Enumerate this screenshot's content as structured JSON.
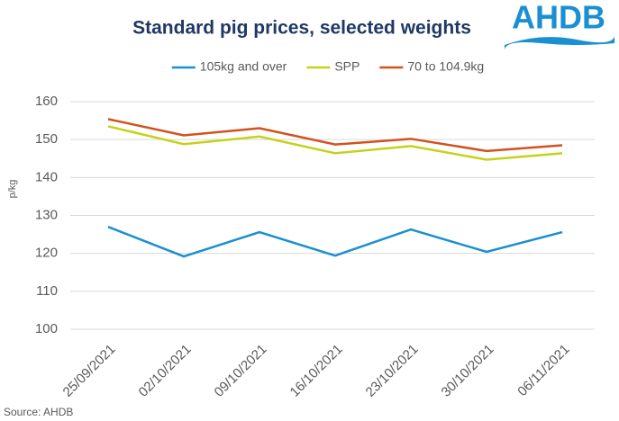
{
  "chart_data": {
    "type": "line",
    "title": "Standard pig prices, selected weights",
    "y_label": "p/kg",
    "categories": [
      "25/09/2021",
      "02/10/2021",
      "09/10/2021",
      "16/10/2021",
      "23/10/2021",
      "30/10/2021",
      "06/11/2021"
    ],
    "series": [
      {
        "name": "105kg and over",
        "color": "#1a8fd1",
        "values": [
          127.0,
          119.2,
          125.6,
          119.4,
          126.3,
          120.4,
          125.6
        ]
      },
      {
        "name": "SPP",
        "color": "#c5d21a",
        "values": [
          153.5,
          148.8,
          150.8,
          146.4,
          148.3,
          144.7,
          146.4
        ]
      },
      {
        "name": "70 to 104.9kg",
        "color": "#d2521e",
        "values": [
          155.4,
          151.1,
          153.0,
          148.7,
          150.2,
          147.0,
          148.5
        ]
      }
    ],
    "ylim": [
      100,
      160
    ],
    "yticks": [
      100,
      110,
      120,
      130,
      140,
      150,
      160
    ],
    "grid": true,
    "legend": "top",
    "source": "Source:  AHDB"
  },
  "logo": "AHDB"
}
